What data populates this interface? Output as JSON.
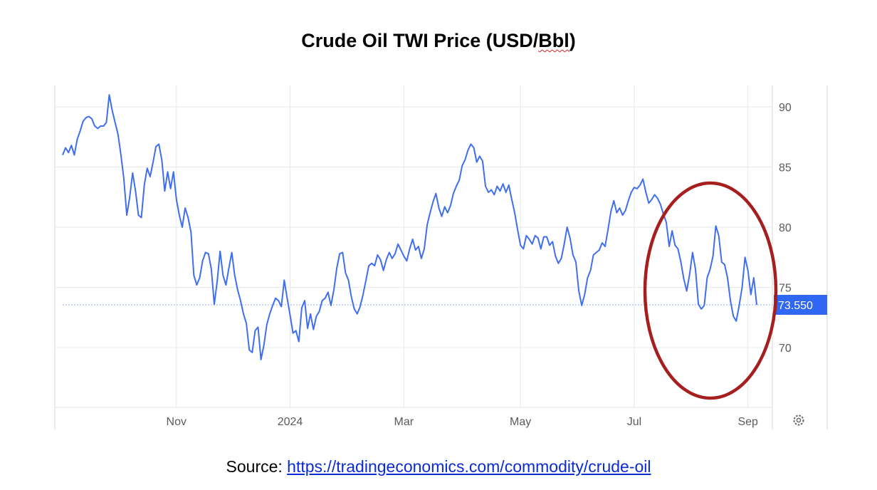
{
  "title_main": "Crude Oil TWI Price (USD/",
  "title_squiggle": "Bbl",
  "title_end": ")",
  "source_label": "Source:",
  "source_link": "https://tradingeconomics.com/commodity/crude-oil",
  "colors": {
    "line": "#3f6ef0",
    "grid": "#e6e8ee",
    "last_badge": "#2f66f2",
    "circle": "#a51f1f"
  },
  "settings_icon": "gear-icon",
  "chart_data": {
    "type": "line",
    "title": "Crude Oil TWI Price (USD/Bbl)",
    "x_tick_labels": [
      "Nov",
      "2024",
      "Mar",
      "May",
      "Jul",
      "Sep"
    ],
    "x_tick_index": [
      39,
      78,
      117,
      157,
      196,
      235
    ],
    "y_ticks": [
      70,
      75,
      80,
      85,
      90
    ],
    "ylim": [
      65,
      92
    ],
    "grid": true,
    "last_value_label": "73.550",
    "last_value": 73.55,
    "highlight_annotation": "red ellipse around Jul–Aug 2024 decline",
    "series": [
      {
        "values": [
          86.0,
          86.6,
          86.2,
          86.8,
          86.0,
          87.3,
          88.0,
          88.8,
          89.1,
          89.2,
          89.0,
          88.4,
          88.2,
          88.4,
          88.4,
          88.7,
          91.0,
          89.7,
          88.7,
          87.7,
          86.0,
          84.0,
          81.0,
          82.5,
          84.5,
          83.0,
          81.0,
          80.8,
          83.5,
          84.9,
          84.2,
          85.4,
          86.7,
          86.9,
          85.6,
          83.0,
          84.6,
          83.2,
          84.6,
          82.3,
          81.0,
          80.0,
          81.6,
          80.8,
          79.6,
          76.0,
          75.2,
          75.8,
          77.2,
          77.9,
          77.8,
          76.5,
          73.6,
          75.5,
          78.0,
          76.0,
          75.2,
          76.6,
          77.9,
          76.0,
          74.8,
          73.9,
          72.8,
          72.0,
          69.8,
          69.6,
          71.4,
          71.7,
          69.0,
          70.2,
          71.9,
          72.8,
          73.5,
          74.1,
          73.9,
          73.4,
          75.6,
          74.1,
          72.7,
          71.2,
          71.4,
          70.5,
          73.3,
          73.9,
          71.6,
          72.8,
          71.5,
          72.6,
          73.0,
          73.9,
          74.1,
          74.6,
          73.5,
          74.8,
          76.6,
          77.8,
          77.9,
          76.2,
          75.6,
          74.2,
          73.2,
          72.8,
          73.4,
          74.4,
          75.6,
          76.8,
          77.0,
          76.8,
          77.7,
          77.3,
          76.4,
          77.3,
          77.9,
          77.4,
          77.8,
          78.6,
          78.1,
          77.6,
          77.2,
          78.2,
          79.0,
          78.1,
          78.4,
          77.4,
          78.2,
          80.2,
          81.2,
          82.1,
          82.8,
          81.6,
          80.9,
          81.7,
          81.2,
          81.8,
          82.8,
          83.4,
          83.9,
          85.1,
          85.6,
          86.4,
          86.9,
          86.6,
          85.4,
          85.9,
          85.5,
          83.4,
          82.9,
          83.1,
          82.7,
          83.4,
          83.0,
          83.6,
          82.9,
          83.5,
          82.3,
          81.2,
          79.8,
          78.5,
          78.2,
          79.3,
          79.0,
          78.6,
          79.3,
          79.1,
          78.2,
          79.2,
          79.2,
          78.5,
          78.8,
          77.6,
          77.0,
          77.4,
          78.6,
          80.0,
          79.1,
          77.7,
          77.1,
          74.7,
          73.5,
          74.4,
          75.8,
          76.4,
          77.7,
          77.9,
          78.1,
          78.7,
          78.4,
          79.8,
          81.3,
          82.2,
          81.2,
          81.6,
          81.0,
          81.4,
          82.2,
          82.9,
          83.3,
          83.2,
          83.5,
          84.0,
          82.9,
          82.0,
          82.3,
          82.7,
          82.4,
          81.9,
          81.1,
          80.4,
          78.4,
          79.7,
          78.5,
          78.2,
          77.1,
          75.7,
          74.7,
          76.1,
          77.9,
          76.5,
          73.6,
          73.2,
          73.5,
          75.8,
          76.5,
          77.6,
          80.1,
          79.3,
          77.1,
          76.9,
          75.8,
          73.9,
          72.6,
          72.2,
          73.5,
          75.0,
          77.5,
          76.4,
          74.4,
          75.8,
          73.55
        ]
      }
    ]
  }
}
